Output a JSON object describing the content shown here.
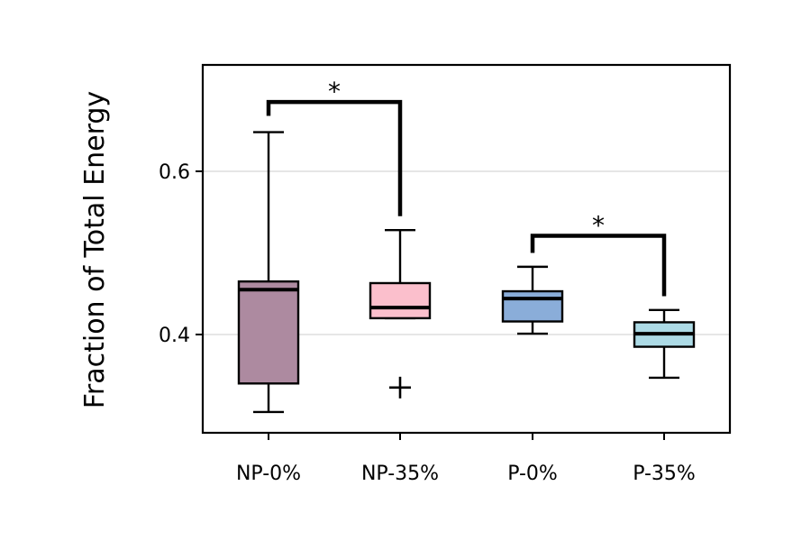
{
  "chart_data": {
    "type": "boxplot",
    "ylabel": "Fraction of Total Energy",
    "ylim": [
      0.28,
      0.72
    ],
    "yticks": [
      0.4,
      0.6
    ],
    "ytick_labels": [
      "0.4",
      "0.6"
    ],
    "grid": "horizontal",
    "categories": [
      "NP-0%",
      "NP-35%",
      "P-0%",
      "P-35%"
    ],
    "colors": [
      "#ad8aa0",
      "#fbbfcc",
      "#8aadd9",
      "#addbe6"
    ],
    "boxes": [
      {
        "category": "NP-0%",
        "whisker_low": 0.305,
        "q1": 0.34,
        "median": 0.455,
        "q3": 0.465,
        "whisker_high": 0.648,
        "outliers": []
      },
      {
        "category": "NP-35%",
        "whisker_low": 0.42,
        "q1": 0.42,
        "median": 0.433,
        "q3": 0.463,
        "whisker_high": 0.528,
        "outliers": [
          0.335
        ]
      },
      {
        "category": "P-0%",
        "whisker_low": 0.401,
        "q1": 0.416,
        "median": 0.444,
        "q3": 0.453,
        "whisker_high": 0.483,
        "outliers": []
      },
      {
        "category": "P-35%",
        "whisker_low": 0.347,
        "q1": 0.385,
        "median": 0.401,
        "q3": 0.415,
        "whisker_high": 0.43,
        "outliers": []
      }
    ],
    "significance": [
      {
        "from": "NP-0%",
        "to": "NP-35%",
        "label": "*",
        "y": 0.685,
        "left_end": 0.668,
        "right_end": 0.545
      },
      {
        "from": "P-0%",
        "to": "P-35%",
        "label": "*",
        "y": 0.521,
        "left_end": 0.5,
        "right_end": 0.447
      }
    ]
  }
}
